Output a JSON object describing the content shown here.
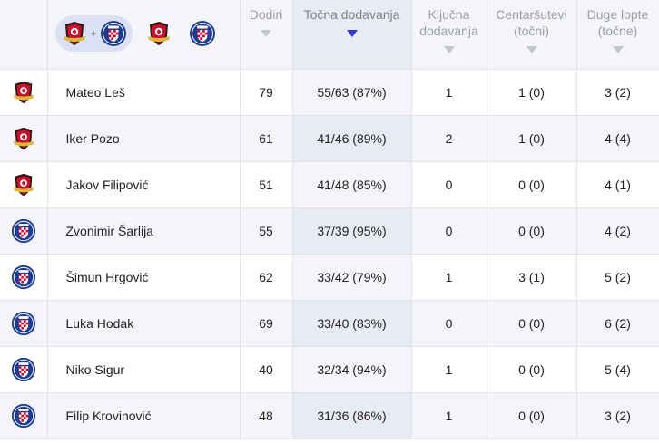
{
  "header": {
    "filters": {
      "combined_plus": "+",
      "team_a_icon": "zrinjski-crest-icon",
      "team_b_icon": "hajduk-crest-icon"
    },
    "columns": [
      {
        "key": "touches",
        "label": "Dodiri"
      },
      {
        "key": "passes",
        "label": "Točna dodavanja"
      },
      {
        "key": "key_passes",
        "label": "Ključna dodavanja"
      },
      {
        "key": "crosses",
        "label": "Centaršutevi (točni)"
      },
      {
        "key": "long_balls",
        "label": "Duge lopte (točne)"
      }
    ]
  },
  "rows": [
    {
      "team": "zrinjski",
      "name": "Mateo Leš",
      "touches": "79",
      "passes": "55/63 (87%)",
      "key_passes": "1",
      "crosses": "1 (0)",
      "long_balls": "3 (2)"
    },
    {
      "team": "zrinjski",
      "name": "Iker Pozo",
      "touches": "61",
      "passes": "41/46 (89%)",
      "key_passes": "2",
      "crosses": "1 (0)",
      "long_balls": "4 (4)"
    },
    {
      "team": "zrinjski",
      "name": "Jakov Filipović",
      "touches": "51",
      "passes": "41/48 (85%)",
      "key_passes": "0",
      "crosses": "0 (0)",
      "long_balls": "4 (1)"
    },
    {
      "team": "hajduk",
      "name": "Zvonimir Šarlija",
      "touches": "55",
      "passes": "37/39 (95%)",
      "key_passes": "0",
      "crosses": "0 (0)",
      "long_balls": "4 (2)"
    },
    {
      "team": "hajduk",
      "name": "Šimun Hrgović",
      "touches": "62",
      "passes": "33/42 (79%)",
      "key_passes": "1",
      "crosses": "3 (1)",
      "long_balls": "5 (2)"
    },
    {
      "team": "hajduk",
      "name": "Luka Hodak",
      "touches": "69",
      "passes": "33/40 (83%)",
      "key_passes": "0",
      "crosses": "0 (0)",
      "long_balls": "6 (2)"
    },
    {
      "team": "hajduk",
      "name": "Niko Sigur",
      "touches": "40",
      "passes": "32/34 (94%)",
      "key_passes": "1",
      "crosses": "0 (0)",
      "long_balls": "5 (4)"
    },
    {
      "team": "hajduk",
      "name": "Filip Krovinović",
      "touches": "48",
      "passes": "31/36 (86%)",
      "key_passes": "1",
      "crosses": "0 (0)",
      "long_balls": "3 (2)"
    }
  ],
  "colors": {
    "zrinjski_red": "#c8102e",
    "zrinjski_dark": "#2b1a12",
    "hajduk_blue": "#1d3c8f",
    "hajduk_red": "#d6002a",
    "sort_arrow_active": "#2a3bd1"
  }
}
